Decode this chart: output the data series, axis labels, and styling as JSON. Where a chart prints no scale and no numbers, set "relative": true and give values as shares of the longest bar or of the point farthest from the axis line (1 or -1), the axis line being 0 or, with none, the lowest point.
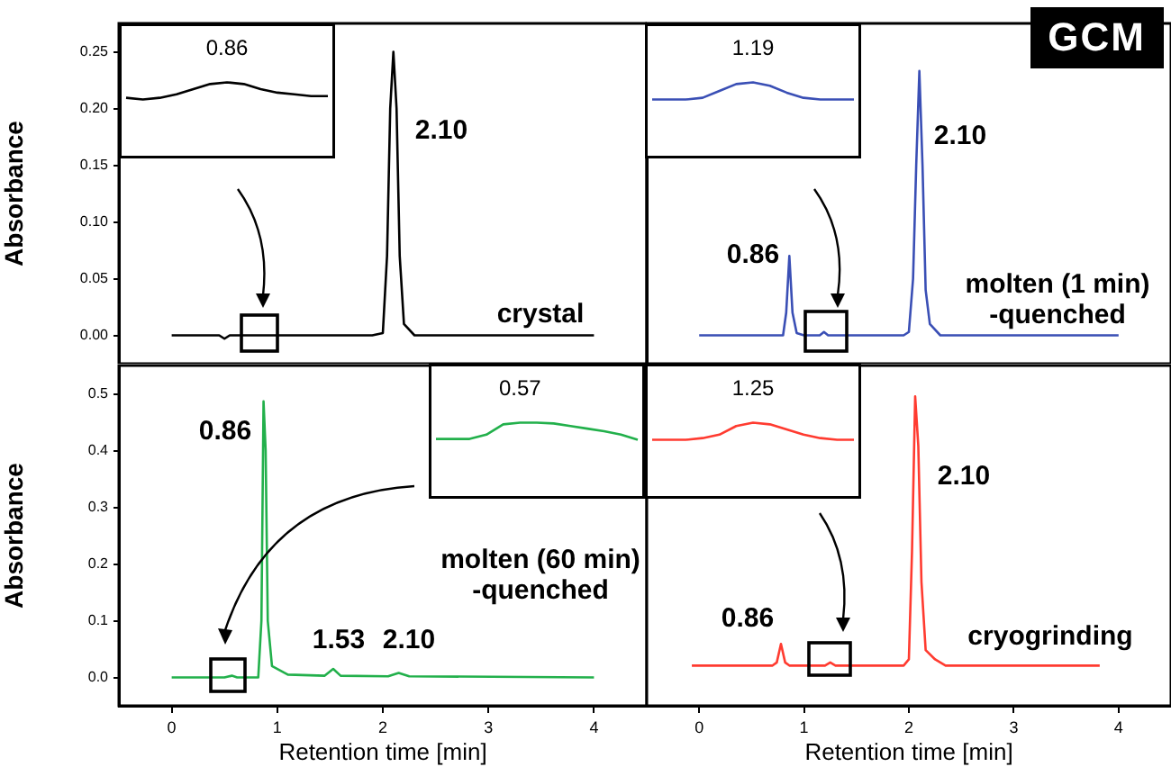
{
  "chart_data": [
    {
      "type": "line",
      "ylabel": "Absorbance",
      "tick_labels": "y",
      "color": "#000000",
      "xlim": [
        -0.5,
        4.5
      ],
      "ylim": [
        -0.025,
        0.275
      ],
      "xticks": [
        0,
        1,
        2,
        3,
        4
      ],
      "yticks": [
        {
          "value": 0,
          "label": "0.00"
        },
        {
          "value": 0.05,
          "label": "0.05"
        },
        {
          "value": 0.1,
          "label": "0.10"
        },
        {
          "value": 0.15,
          "label": "0.15"
        },
        {
          "value": 0.2,
          "label": "0.20"
        },
        {
          "value": 0.25,
          "label": "0.25"
        }
      ],
      "x": [
        0,
        0.45,
        0.5,
        0.55,
        1.9,
        2.0,
        2.04,
        2.07,
        2.1,
        2.13,
        2.16,
        2.2,
        2.3,
        4
      ],
      "values": [
        0,
        0,
        -0.003,
        0,
        0,
        0.002,
        0.07,
        0.2,
        0.25,
        0.2,
        0.07,
        0.01,
        0,
        0
      ],
      "annotations": [
        "2.10",
        "crystal"
      ]
    },
    {
      "type": "line",
      "title": "GCM",
      "tick_labels": false,
      "color": "#3a4fb5",
      "xlim": [
        -0.5,
        4.5
      ],
      "ylim": [
        -0.025,
        0.275
      ],
      "xticks": [
        0,
        1,
        2,
        3,
        4
      ],
      "x": [
        0,
        0.8,
        0.83,
        0.86,
        0.89,
        0.93,
        1.0,
        1.15,
        1.19,
        1.23,
        1.95,
        2.0,
        2.04,
        2.07,
        2.1,
        2.13,
        2.16,
        2.2,
        2.3,
        4
      ],
      "values": [
        0,
        0,
        0.02,
        0.07,
        0.02,
        0.002,
        0,
        0,
        0.003,
        0,
        0,
        0.003,
        0.05,
        0.15,
        0.233,
        0.15,
        0.04,
        0.01,
        0,
        0
      ],
      "annotations": [
        "0.86",
        "2.10",
        "molten (1 min)\n-quenched"
      ]
    },
    {
      "type": "line",
      "ylabel": "Absorbance",
      "xlabel": "Retention time [min]",
      "color": "#22b04b",
      "xlim": [
        -0.5,
        4.5
      ],
      "ylim": [
        -0.05,
        0.55
      ],
      "xticks": [
        0,
        1,
        2,
        3,
        4
      ],
      "yticks": [
        {
          "value": 0,
          "label": "0.0"
        },
        {
          "value": 0.1,
          "label": "0.1"
        },
        {
          "value": 0.2,
          "label": "0.2"
        },
        {
          "value": 0.3,
          "label": "0.3"
        },
        {
          "value": 0.4,
          "label": "0.4"
        },
        {
          "value": 0.5,
          "label": "0.5"
        }
      ],
      "x": [
        0,
        0.5,
        0.57,
        0.62,
        0.82,
        0.85,
        0.87,
        0.89,
        0.91,
        0.95,
        1.1,
        1.45,
        1.53,
        1.6,
        2.05,
        2.15,
        2.25,
        4
      ],
      "values": [
        0,
        0,
        0.003,
        0,
        0,
        0.1,
        0.487,
        0.4,
        0.1,
        0.02,
        0.005,
        0.003,
        0.015,
        0.003,
        0.002,
        0.008,
        0.002,
        0
      ],
      "annotations": [
        "0.86",
        "1.53",
        "2.10",
        "molten (60 min)\n-quenched"
      ]
    },
    {
      "type": "line",
      "xlabel": "Retention time [min]",
      "tick_labels": "x",
      "relative": true,
      "color": "#ff3b30",
      "xlim": [
        -0.5,
        4.5
      ],
      "xticks": [
        0,
        1,
        2,
        3,
        4
      ],
      "x": [
        -0.07,
        0.7,
        0.74,
        0.78,
        0.82,
        0.86,
        1.2,
        1.25,
        1.3,
        1.95,
        2.0,
        2.03,
        2.06,
        2.09,
        2.12,
        2.16,
        2.25,
        2.35,
        3.82
      ],
      "values": [
        0.13,
        0.13,
        0.14,
        0.2,
        0.14,
        0.13,
        0.13,
        0.14,
        0.13,
        0.13,
        0.15,
        0.5,
        1,
        0.84,
        0.4,
        0.18,
        0.15,
        0.13,
        0.13
      ],
      "annotations": [
        "2.10",
        "0.86",
        "cryogrinding"
      ]
    },
    {
      "type": "line",
      "relative": true,
      "color": "#000000",
      "categories": [
        null,
        null,
        null,
        null,
        null,
        null,
        null,
        null,
        null,
        null,
        null,
        null,
        null
      ],
      "values": [
        0.1,
        0,
        0.1,
        0.3,
        0.6,
        0.9,
        1,
        0.9,
        0.6,
        0.4,
        0.3,
        0.2,
        0.2
      ],
      "annotations": [
        "0.86"
      ]
    },
    {
      "type": "line",
      "relative": true,
      "color": "#3a4fb5",
      "categories": [
        null,
        null,
        null,
        null,
        null,
        null,
        null,
        null,
        null,
        null,
        null,
        null,
        null
      ],
      "values": [
        0,
        0,
        0,
        0.1,
        0.5,
        0.9,
        1,
        0.8,
        0.4,
        0.1,
        0,
        0,
        0
      ],
      "annotations": [
        "1.19"
      ]
    },
    {
      "type": "line",
      "relative": true,
      "color": "#22b04b",
      "categories": [
        null,
        null,
        null,
        null,
        null,
        null,
        null,
        null,
        null,
        null,
        null,
        null,
        null
      ],
      "values": [
        0.05,
        0.05,
        0.05,
        0.3,
        0.9,
        1,
        1,
        0.95,
        0.8,
        0.65,
        0.5,
        0.3,
        0
      ],
      "annotations": [
        "0.57"
      ]
    },
    {
      "type": "line",
      "relative": true,
      "color": "#ff3b30",
      "categories": [
        null,
        null,
        null,
        null,
        null,
        null,
        null,
        null,
        null,
        null,
        null,
        null,
        null
      ],
      "values": [
        0,
        0,
        0,
        0.1,
        0.3,
        0.8,
        1,
        0.9,
        0.6,
        0.3,
        0.1,
        0,
        0
      ],
      "annotations": [
        "1.25"
      ]
    }
  ]
}
